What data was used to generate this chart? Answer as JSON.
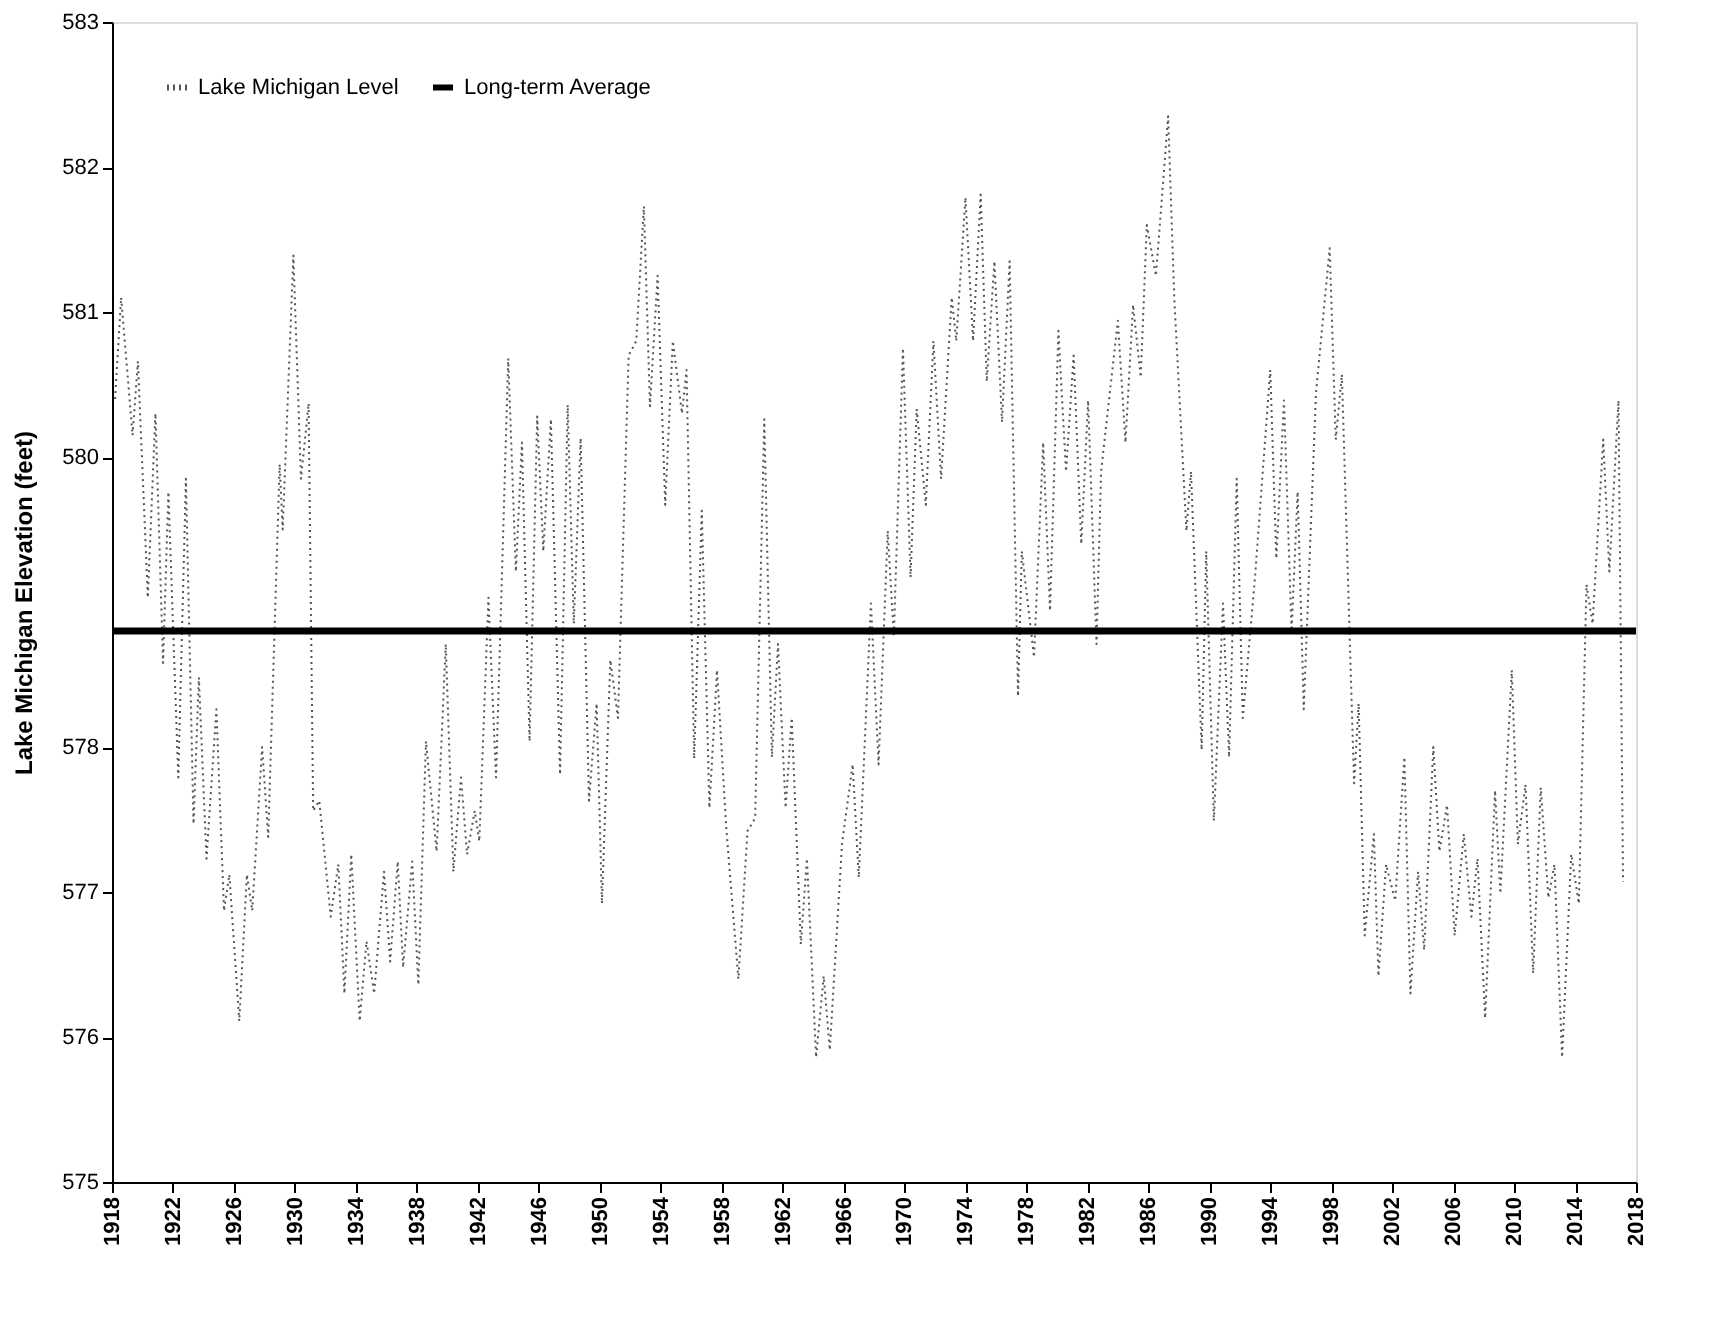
{
  "chart_data": {
    "type": "line",
    "ylabel": "Lake Michigan Elevation (feet)",
    "xlim": [
      1918,
      2018
    ],
    "xticks": [
      1918,
      1922,
      1926,
      1930,
      1934,
      1938,
      1942,
      1946,
      1950,
      1954,
      1958,
      1962,
      1966,
      1970,
      1974,
      1978,
      1982,
      1986,
      1990,
      1994,
      1998,
      2002,
      2006,
      2010,
      2014,
      2018
    ],
    "ylim": [
      575,
      583
    ],
    "yticks": [
      575,
      576,
      577,
      578,
      580,
      581,
      582,
      583
    ],
    "grid": false,
    "legend": "top left",
    "line_style": "dotted",
    "marker": "none",
    "series": [
      {
        "name": "Lake Michigan Level",
        "color": "#555555",
        "x": [
          1918.2,
          1918.6,
          1919.35,
          1919.7,
          1920.35,
          1920.85,
          1921.35,
          1921.7,
          1922.35,
          1922.85,
          1923.35,
          1923.7,
          1924.2,
          1924.85,
          1925.35,
          1925.7,
          1926.35,
          1926.85,
          1927.2,
          1927.85,
          1928.25,
          1929.0,
          1929.2,
          1929.9,
          1930.4,
          1930.9,
          1931.2,
          1931.6,
          1932.35,
          1932.85,
          1933.25,
          1933.7,
          1934.25,
          1934.7,
          1935.2,
          1935.85,
          1936.25,
          1936.75,
          1937.1,
          1937.7,
          1938.1,
          1938.6,
          1939.3,
          1939.9,
          1940.4,
          1940.9,
          1941.3,
          1941.8,
          1942.1,
          1942.7,
          1943.2,
          1944.0,
          1944.5,
          1944.9,
          1945.4,
          1945.9,
          1946.3,
          1946.8,
          1947.4,
          1947.9,
          1948.3,
          1948.75,
          1949.3,
          1949.8,
          1950.15,
          1950.7,
          1951.2,
          1951.9,
          1952.4,
          1952.9,
          1953.3,
          1953.8,
          1954.3,
          1954.8,
          1955.4,
          1955.7,
          1956.2,
          1956.7,
          1957.2,
          1957.7,
          1958.3,
          1959.1,
          1959.7,
          1960.2,
          1960.8,
          1961.3,
          1961.7,
          1962.2,
          1962.6,
          1963.2,
          1963.6,
          1964.2,
          1964.7,
          1965.1,
          1965.9,
          1966.6,
          1967.0,
          1967.8,
          1968.3,
          1968.9,
          1969.3,
          1969.9,
          1970.4,
          1970.8,
          1971.4,
          1971.9,
          1972.4,
          1973.1,
          1973.4,
          1974.0,
          1974.5,
          1975.0,
          1975.4,
          1975.9,
          1976.4,
          1976.9,
          1977.45,
          1977.7,
          1978.5,
          1979.1,
          1979.55,
          1980.1,
          1980.6,
          1981.1,
          1981.6,
          1982.05,
          1982.6,
          1982.9,
          1984.0,
          1984.5,
          1985.0,
          1985.5,
          1985.9,
          1986.5,
          1987.3,
          1987.7,
          1988.5,
          1988.8,
          1989.5,
          1989.8,
          1990.3,
          1990.9,
          1991.3,
          1991.8,
          1992.2,
          1993.0,
          1994.0,
          1994.4,
          1994.9,
          1995.4,
          1995.8,
          1996.2,
          1997.0,
          1997.9,
          1998.3,
          1998.7,
          1999.5,
          1999.8,
          2000.2,
          2000.8,
          2001.1,
          2001.6,
          2002.2,
          2002.8,
          2003.2,
          2003.7,
          2004.1,
          2004.7,
          2005.1,
          2005.6,
          2006.1,
          2006.7,
          2007.2,
          2007.6,
          2008.1,
          2008.75,
          2009.1,
          2009.85,
          2010.25,
          2010.75,
          2011.25,
          2011.75,
          2012.25,
          2012.65,
          2013.15,
          2013.75,
          2014.25,
          2014.75,
          2015.15,
          2015.85,
          2016.25,
          2016.85,
          2017.15
        ],
        "values": [
          580.4,
          581.1,
          580.15,
          580.66,
          579.03,
          580.3,
          578.58,
          579.76,
          577.79,
          579.85,
          577.47,
          578.48,
          577.23,
          578.26,
          576.87,
          577.12,
          576.11,
          577.12,
          576.87,
          578.0,
          577.38,
          579.95,
          579.5,
          581.39,
          579.85,
          580.37,
          577.56,
          577.63,
          576.83,
          577.19,
          576.3,
          577.26,
          576.11,
          576.66,
          576.3,
          577.14,
          576.52,
          577.21,
          576.48,
          577.21,
          576.36,
          578.04,
          577.28,
          578.71,
          577.14,
          577.79,
          577.26,
          577.56,
          577.35,
          579.03,
          577.79,
          580.68,
          579.21,
          580.1,
          578.04,
          580.28,
          579.35,
          580.26,
          577.81,
          580.36,
          578.85,
          580.13,
          577.63,
          578.3,
          576.92,
          578.6,
          578.2,
          580.7,
          580.8,
          581.73,
          580.35,
          581.25,
          579.67,
          580.8,
          580.3,
          580.6,
          577.92,
          579.63,
          577.58,
          578.53,
          577.45,
          576.4,
          577.42,
          577.51,
          580.26,
          577.93,
          578.71,
          577.58,
          578.2,
          576.64,
          577.23,
          575.86,
          576.42,
          575.91,
          577.33,
          577.88,
          577.1,
          578.99,
          577.88,
          579.49,
          578.76,
          580.75,
          579.17,
          580.33,
          579.67,
          580.8,
          579.85,
          581.1,
          580.8,
          581.79,
          580.8,
          581.81,
          580.52,
          581.35,
          580.24,
          581.35,
          578.35,
          579.35,
          578.62,
          580.1,
          578.94,
          580.87,
          579.9,
          580.7,
          579.4,
          580.39,
          578.71,
          579.9,
          580.94,
          580.1,
          581.05,
          580.55,
          581.6,
          581.25,
          582.35,
          581.1,
          579.49,
          579.9,
          577.98,
          579.35,
          577.49,
          578.99,
          577.93,
          579.85,
          578.2,
          579.17,
          580.6,
          579.3,
          580.39,
          578.8,
          579.76,
          578.26,
          580.44,
          581.44,
          580.12,
          580.57,
          577.75,
          578.3,
          576.7,
          577.4,
          576.42,
          577.19,
          576.94,
          577.93,
          576.3,
          577.14,
          576.6,
          578.0,
          577.28,
          577.6,
          576.7,
          577.4,
          576.83,
          577.23,
          576.13,
          577.7,
          576.99,
          578.53,
          577.33,
          577.74,
          576.44,
          577.72,
          576.96,
          577.19,
          575.86,
          577.26,
          576.92,
          579.12,
          578.85,
          580.12,
          579.21,
          580.39,
          577.07
        ]
      }
    ],
    "ref_lines": [
      {
        "axis": "y",
        "value": 578.8,
        "label": "Long-term Average",
        "color": "#000000",
        "line_style": "solid"
      }
    ]
  }
}
